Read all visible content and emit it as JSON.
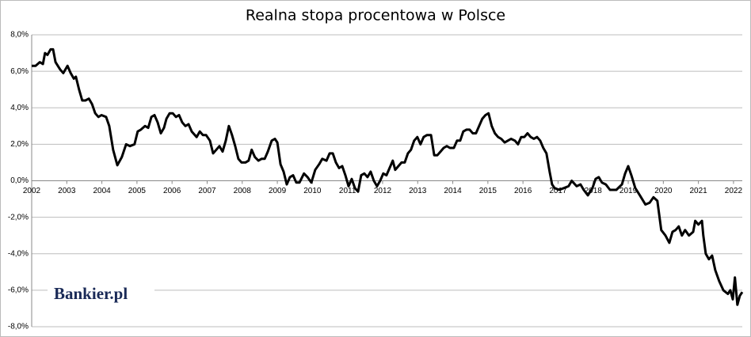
{
  "chart_data": {
    "type": "line",
    "title": "Realna stopa procentowa w Polsce",
    "watermark": "Bankier.pl",
    "x": [
      2002.0,
      2002.11,
      2002.23,
      2002.32,
      2002.38,
      2002.45,
      2002.54,
      2002.61,
      2002.68,
      2002.81,
      2002.9,
      2003.02,
      2003.11,
      2003.2,
      2003.26,
      2003.35,
      2003.44,
      2003.53,
      2003.63,
      2003.72,
      2003.81,
      2003.9,
      2003.99,
      2004.12,
      2004.21,
      2004.32,
      2004.44,
      2004.57,
      2004.69,
      2004.8,
      2004.93,
      2005.02,
      2005.11,
      2005.23,
      2005.32,
      2005.41,
      2005.5,
      2005.59,
      2005.68,
      2005.77,
      2005.84,
      2005.93,
      2006.02,
      2006.11,
      2006.2,
      2006.29,
      2006.38,
      2006.47,
      2006.56,
      2006.7,
      2006.79,
      2006.88,
      2006.97,
      2007.08,
      2007.17,
      2007.26,
      2007.35,
      2007.44,
      2007.53,
      2007.62,
      2007.71,
      2007.8,
      2007.89,
      2007.98,
      2008.09,
      2008.18,
      2008.27,
      2008.36,
      2008.46,
      2008.55,
      2008.64,
      2008.73,
      2008.84,
      2008.93,
      2009.0,
      2009.09,
      2009.18,
      2009.27,
      2009.36,
      2009.45,
      2009.54,
      2009.63,
      2009.76,
      2009.86,
      2009.97,
      2010.08,
      2010.19,
      2010.28,
      2010.4,
      2010.49,
      2010.58,
      2010.67,
      2010.76,
      2010.85,
      2010.94,
      2011.03,
      2011.12,
      2011.21,
      2011.3,
      2011.39,
      2011.48,
      2011.57,
      2011.66,
      2011.75,
      2011.84,
      2011.93,
      2012.02,
      2012.11,
      2012.2,
      2012.29,
      2012.36,
      2012.45,
      2012.54,
      2012.63,
      2012.72,
      2012.81,
      2012.9,
      2012.99,
      2013.08,
      2013.17,
      2013.26,
      2013.38,
      2013.47,
      2013.56,
      2013.65,
      2013.74,
      2013.83,
      2013.92,
      2014.03,
      2014.12,
      2014.21,
      2014.3,
      2014.39,
      2014.48,
      2014.57,
      2014.66,
      2014.75,
      2014.84,
      2014.93,
      2015.02,
      2015.11,
      2015.2,
      2015.29,
      2015.38,
      2015.48,
      2015.57,
      2015.66,
      2015.77,
      2015.86,
      2015.95,
      2016.04,
      2016.13,
      2016.22,
      2016.31,
      2016.4,
      2016.49,
      2016.58,
      2016.67,
      2016.76,
      2016.83,
      2016.9,
      2017.03,
      2017.17,
      2017.3,
      2017.39,
      2017.53,
      2017.64,
      2017.73,
      2017.85,
      2017.98,
      2018.07,
      2018.16,
      2018.25,
      2018.36,
      2018.48,
      2018.66,
      2018.82,
      2018.91,
      2019.0,
      2019.09,
      2019.2,
      2019.33,
      2019.49,
      2019.61,
      2019.72,
      2019.83,
      2019.94,
      2020.06,
      2020.17,
      2020.26,
      2020.35,
      2020.44,
      2020.53,
      2020.62,
      2020.73,
      2020.85,
      2020.91,
      2021.0,
      2021.1,
      2021.14,
      2021.21,
      2021.3,
      2021.39,
      2021.48,
      2021.59,
      2021.71,
      2021.84,
      2021.91,
      2021.98,
      2022.04,
      2022.11,
      2022.18,
      2022.25
    ],
    "series": [
      {
        "color": "#000000",
        "values": [
          6.3,
          6.3,
          6.5,
          6.4,
          7.0,
          6.9,
          7.2,
          7.2,
          6.5,
          6.1,
          5.9,
          6.3,
          5.9,
          5.6,
          5.7,
          5.0,
          4.4,
          4.4,
          4.5,
          4.2,
          3.7,
          3.5,
          3.6,
          3.5,
          3.0,
          1.7,
          0.85,
          1.3,
          2.0,
          1.9,
          2.0,
          2.7,
          2.8,
          3.0,
          2.9,
          3.5,
          3.6,
          3.2,
          2.6,
          2.9,
          3.4,
          3.7,
          3.7,
          3.5,
          3.6,
          3.2,
          3.0,
          3.1,
          2.7,
          2.4,
          2.7,
          2.5,
          2.5,
          2.2,
          1.5,
          1.7,
          1.9,
          1.6,
          2.2,
          3.0,
          2.5,
          1.9,
          1.2,
          1.0,
          1.0,
          1.1,
          1.7,
          1.3,
          1.1,
          1.2,
          1.2,
          1.6,
          2.2,
          2.3,
          2.1,
          0.9,
          0.5,
          -0.2,
          0.2,
          0.3,
          -0.1,
          -0.1,
          0.4,
          0.2,
          -0.1,
          0.6,
          0.9,
          1.2,
          1.1,
          1.5,
          1.5,
          1.0,
          0.7,
          0.8,
          0.3,
          -0.3,
          0.1,
          -0.4,
          -0.6,
          0.3,
          0.4,
          0.2,
          0.5,
          0.0,
          -0.3,
          0.0,
          0.4,
          0.3,
          0.7,
          1.1,
          0.6,
          0.8,
          1.0,
          1.0,
          1.5,
          1.7,
          2.2,
          2.4,
          2.0,
          2.4,
          2.5,
          2.5,
          1.4,
          1.4,
          1.6,
          1.8,
          1.9,
          1.8,
          1.8,
          2.2,
          2.2,
          2.7,
          2.8,
          2.8,
          2.6,
          2.6,
          3.0,
          3.4,
          3.6,
          3.7,
          3.0,
          2.6,
          2.4,
          2.3,
          2.1,
          2.2,
          2.3,
          2.2,
          2.0,
          2.4,
          2.4,
          2.6,
          2.4,
          2.3,
          2.4,
          2.2,
          1.8,
          1.5,
          0.5,
          -0.2,
          -0.4,
          -0.5,
          -0.4,
          -0.3,
          0.0,
          -0.3,
          -0.2,
          -0.5,
          -0.8,
          -0.4,
          0.1,
          0.2,
          -0.1,
          -0.2,
          -0.5,
          -0.5,
          -0.2,
          0.4,
          0.8,
          0.3,
          -0.4,
          -0.8,
          -1.3,
          -1.2,
          -0.9,
          -1.1,
          -2.7,
          -3.0,
          -3.4,
          -2.8,
          -2.7,
          -2.5,
          -3.0,
          -2.7,
          -3.0,
          -2.8,
          -2.2,
          -2.4,
          -2.2,
          -3.0,
          -4.0,
          -4.3,
          -4.1,
          -4.9,
          -5.5,
          -6.0,
          -6.2,
          -6.0,
          -6.5,
          -5.3,
          -6.8,
          -6.3,
          -6.1
        ]
      }
    ],
    "xlim": [
      2002,
      2022.25
    ],
    "xticks": [
      2002,
      2003,
      2004,
      2005,
      2006,
      2007,
      2008,
      2009,
      2010,
      2011,
      2012,
      2013,
      2014,
      2015,
      2016,
      2017,
      2018,
      2019,
      2020,
      2021,
      2022
    ],
    "ylim": [
      -8,
      8
    ],
    "yticks": [
      {
        "value": -8,
        "label": "-8,0%"
      },
      {
        "value": -6,
        "label": "-6,0%"
      },
      {
        "value": -4,
        "label": "-4,0%"
      },
      {
        "value": -2,
        "label": "-2,0%"
      },
      {
        "value": 0,
        "label": "0,0%"
      },
      {
        "value": 2,
        "label": "2,0%"
      },
      {
        "value": 4,
        "label": "4,0%"
      },
      {
        "value": 6,
        "label": "6,0%"
      },
      {
        "value": 8,
        "label": "8,0%"
      }
    ],
    "grid": true
  }
}
